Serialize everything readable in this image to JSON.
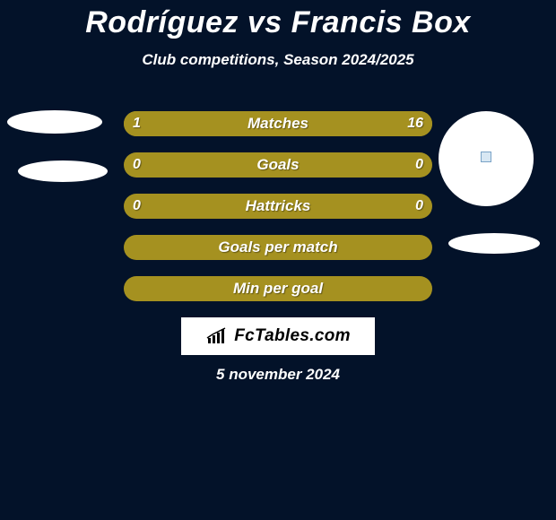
{
  "header": {
    "title": "Rodríguez vs Francis Box",
    "subtitle": "Club competitions, Season 2024/2025"
  },
  "theme": {
    "background_color": "#031229",
    "bar_color": "#a59120",
    "text_color": "#ffffff",
    "badge_bg": "#ffffff",
    "badge_text_color": "#000000"
  },
  "bars": [
    {
      "label": "Matches",
      "left_value": "1",
      "right_value": "16",
      "left_pct": 18,
      "right_pct": 82,
      "show_values": true,
      "full_fill": false
    },
    {
      "label": "Goals",
      "left_value": "0",
      "right_value": "0",
      "left_pct": 0,
      "right_pct": 0,
      "show_values": true,
      "full_fill": true
    },
    {
      "label": "Hattricks",
      "left_value": "0",
      "right_value": "0",
      "left_pct": 0,
      "right_pct": 0,
      "show_values": true,
      "full_fill": true
    },
    {
      "label": "Goals per match",
      "left_value": "",
      "right_value": "",
      "left_pct": 0,
      "right_pct": 0,
      "show_values": false,
      "full_fill": true
    },
    {
      "label": "Min per goal",
      "left_value": "",
      "right_value": "",
      "left_pct": 0,
      "right_pct": 0,
      "show_values": false,
      "full_fill": true
    }
  ],
  "branding": {
    "site_label": "FcTables.com",
    "icon_color": "#000000"
  },
  "footer": {
    "date_text": "5 november 2024"
  },
  "decor": {
    "ellipse_color": "#ffffff"
  }
}
